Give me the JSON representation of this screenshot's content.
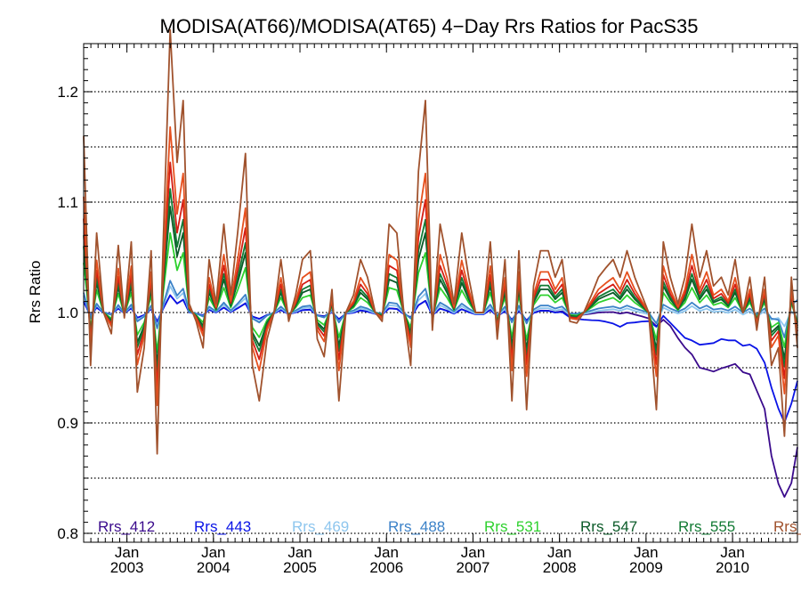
{
  "chart_data": {
    "type": "line",
    "title": "MODISA(AT66)/MODISA(AT65) 4−Day Rrs Ratios for PacS35",
    "ylabel": "Rrs Ratio",
    "xlabel": "",
    "xlim": [
      2002.5,
      2010.75
    ],
    "ylim": [
      0.79,
      1.24
    ],
    "grid": "horizontal dotted",
    "y_ticks": [
      "0.8",
      "0.9",
      "1.0",
      "1.1",
      "1.2"
    ],
    "y_tick_values": [
      0.8,
      0.9,
      1.0,
      1.1,
      1.2
    ],
    "gridlines": [
      0.8,
      0.85,
      0.9,
      0.95,
      1.0,
      1.05,
      1.1,
      1.15,
      1.2
    ],
    "x_ticks": [
      {
        "x": 2003.0,
        "month": "Jan",
        "year": "2003"
      },
      {
        "x": 2004.0,
        "month": "Jan",
        "year": "2004"
      },
      {
        "x": 2005.0,
        "month": "Jan",
        "year": "2005"
      },
      {
        "x": 2006.0,
        "month": "Jan",
        "year": "2006"
      },
      {
        "x": 2007.0,
        "month": "Jan",
        "year": "2007"
      },
      {
        "x": 2008.0,
        "month": "Jan",
        "year": "2008"
      },
      {
        "x": 2009.0,
        "month": "Jan",
        "year": "2009"
      },
      {
        "x": 2010.0,
        "month": "Jan",
        "year": "2010"
      }
    ],
    "legend_position": "bottom, inside plot",
    "series": [
      {
        "name": "Rrs_412",
        "color": "#3a0a8c",
        "amp": 0.1,
        "x": [
          2002.5,
          2008.5,
          2008.9,
          2009.1,
          2009.3,
          2009.5,
          2009.65,
          2009.8,
          2010.0,
          2010.2,
          2010.35,
          2010.5,
          2010.6,
          2010.65,
          2010.75
        ],
        "y": [
          1.0,
          0.998,
          0.996,
          0.994,
          0.985,
          0.96,
          0.945,
          0.945,
          0.952,
          0.942,
          0.92,
          0.85,
          0.84,
          0.828,
          0.88
        ]
      },
      {
        "name": "Rrs_443",
        "color": "#0a14e6",
        "amp": 0.1,
        "x": [
          2002.5,
          2008.0,
          2008.5,
          2008.7,
          2009.0,
          2009.2,
          2009.35,
          2009.5,
          2009.7,
          2009.9,
          2010.1,
          2010.3,
          2010.45,
          2010.55,
          2010.65,
          2010.75
        ],
        "y": [
          1.0,
          0.998,
          0.99,
          0.985,
          0.992,
          0.993,
          0.985,
          0.97,
          0.968,
          0.975,
          0.97,
          0.968,
          0.935,
          0.91,
          0.905,
          0.94
        ]
      },
      {
        "name": "Rrs_469",
        "color": "#8ec6ee",
        "amp": 0.15,
        "x": [
          2002.5,
          2010.75
        ],
        "y": [
          1.0,
          0.998
        ]
      },
      {
        "name": "Rrs_488",
        "color": "#3c82c8",
        "amp": 0.18,
        "x": [
          2002.5,
          2010.5,
          2010.6,
          2010.75
        ],
        "y": [
          1.0,
          1.0,
          0.99,
          1.015
        ]
      },
      {
        "name": "Rrs_531",
        "color": "#2ed12e",
        "amp": 0.45,
        "x": [
          2002.5,
          2010.75
        ],
        "y": [
          1.0,
          1.0
        ]
      },
      {
        "name": "Rrs_547",
        "color": "#0a5a28",
        "amp": 0.6,
        "x": [
          2002.5,
          2010.75
        ],
        "y": [
          1.0,
          1.0
        ]
      },
      {
        "name": "Rrs_555",
        "color": "#127a34",
        "amp": 0.7,
        "x": [
          2002.5,
          2010.75
        ],
        "y": [
          1.0,
          1.0
        ]
      },
      {
        "name": "",
        "color": "#d41e14",
        "amp": 0.85,
        "x": [
          2002.5,
          2010.75
        ],
        "y": [
          1.0,
          1.0
        ]
      },
      {
        "name": "",
        "color": "#e6501e",
        "amp": 1.05,
        "x": [
          2002.5,
          2010.75
        ],
        "y": [
          1.0,
          1.0
        ]
      },
      {
        "name": "Rrs_",
        "color": "#a0522d",
        "amp": 1.6,
        "x": [
          2002.5,
          2010.75
        ],
        "y": [
          1.0,
          1.0
        ]
      }
    ],
    "variability": {
      "x": [
        2002.5,
        2002.58,
        2002.65,
        2002.73,
        2002.82,
        2002.9,
        2002.97,
        2003.05,
        2003.12,
        2003.2,
        2003.28,
        2003.35,
        2003.42,
        2003.5,
        2003.58,
        2003.65,
        2003.72,
        2003.8,
        2003.88,
        2003.95,
        2004.03,
        2004.12,
        2004.2,
        2004.28,
        2004.37,
        2004.45,
        2004.53,
        2004.62,
        2004.7,
        2004.78,
        2004.87,
        2004.95,
        2005.03,
        2005.12,
        2005.2,
        2005.28,
        2005.37,
        2005.45,
        2005.53,
        2005.62,
        2005.7,
        2005.78,
        2005.87,
        2005.95,
        2006.03,
        2006.12,
        2006.2,
        2006.28,
        2006.37,
        2006.45,
        2006.53,
        2006.62,
        2006.7,
        2006.78,
        2006.87,
        2006.95,
        2007.03,
        2007.12,
        2007.2,
        2007.28,
        2007.37,
        2007.45,
        2007.53,
        2007.62,
        2007.7,
        2007.78,
        2007.87,
        2007.95,
        2008.03,
        2008.12,
        2008.2,
        2008.28,
        2008.37,
        2008.45,
        2008.53,
        2008.62,
        2008.7,
        2008.78,
        2008.87,
        2008.95,
        2009.03,
        2009.12,
        2009.2,
        2009.28,
        2009.37,
        2009.45,
        2009.53,
        2009.62,
        2009.7,
        2009.78,
        2009.87,
        2009.95,
        2010.03,
        2010.12,
        2010.2,
        2010.28,
        2010.37,
        2010.45,
        2010.53,
        2010.6,
        2010.68,
        2010.75
      ],
      "d": [
        0.1,
        -0.03,
        0.045,
        0.0,
        -0.012,
        0.038,
        -0.003,
        0.04,
        -0.045,
        -0.02,
        0.035,
        -0.08,
        0.04,
        0.16,
        0.085,
        0.12,
        0.005,
        -0.005,
        -0.02,
        0.03,
        0.005,
        0.05,
        0.01,
        0.045,
        0.09,
        -0.03,
        -0.05,
        -0.015,
        0.0,
        0.03,
        -0.005,
        0.01,
        0.03,
        0.035,
        -0.015,
        -0.025,
        0.013,
        -0.05,
        0.0,
        0.01,
        0.03,
        0.02,
        0.0,
        -0.005,
        0.05,
        0.045,
        0.0,
        -0.03,
        0.08,
        0.12,
        -0.01,
        0.05,
        0.03,
        0.005,
        0.045,
        0.02,
        0.0,
        0.0,
        0.04,
        -0.015,
        0.03,
        -0.05,
        0.035,
        -0.055,
        0.015,
        0.035,
        0.035,
        0.02,
        0.03,
        -0.005,
        -0.006,
        0.0,
        0.01,
        0.02,
        0.025,
        0.03,
        0.02,
        0.035,
        0.02,
        0.01,
        0.0,
        -0.055,
        0.04,
        0.02,
        0.005,
        0.02,
        0.05,
        0.02,
        0.035,
        0.015,
        0.02,
        0.01,
        0.03,
        0.0,
        0.02,
        -0.01,
        0.02,
        -0.03,
        -0.02,
        -0.07,
        0.02,
        -0.02
      ]
    }
  }
}
